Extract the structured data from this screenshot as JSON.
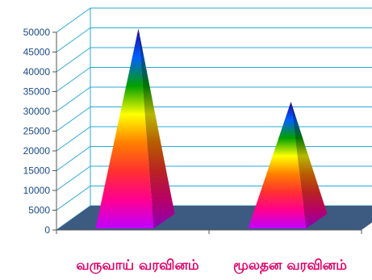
{
  "chart_data": {
    "type": "bar",
    "style": "3d-pyramid",
    "categories": [
      "வருவாய் வரவினம்",
      "மூலதன வரவினம்"
    ],
    "values": [
      49500,
      31000
    ],
    "ylim": [
      0,
      50000
    ],
    "yticks": [
      0,
      5000,
      10000,
      15000,
      20000,
      25000,
      30000,
      35000,
      40000,
      45000,
      50000
    ],
    "grid": true,
    "legend": "none",
    "colors": {
      "grid": "#29a8d8",
      "floor": "#3d5a80",
      "tick_text": "#1a4a8a",
      "category_text": "#e0006a",
      "pyramid_spectrum": [
        "#c000ff",
        "#ff0090",
        "#ff3030",
        "#ff8000",
        "#ffff00",
        "#00a000",
        "#0060ff",
        "#2000a0"
      ]
    }
  }
}
